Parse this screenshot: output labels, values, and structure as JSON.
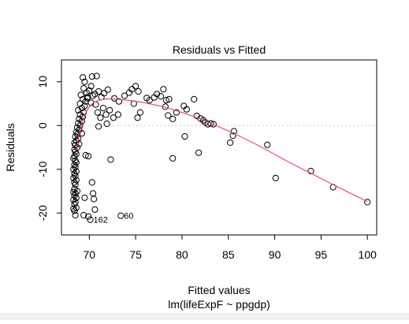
{
  "chart_data": {
    "type": "scatter",
    "title": "Residuals vs Fitted",
    "xlabel": "Fitted values",
    "subtitle": "lm(lifeExpF ~ ppgdp)",
    "ylabel": "Residuals",
    "xlim": [
      67,
      101
    ],
    "ylim": [
      -25,
      15
    ],
    "xticks": [
      70,
      75,
      80,
      85,
      90,
      95,
      100
    ],
    "yticks": [
      -20,
      -10,
      0,
      10
    ],
    "reference_line_y": 0,
    "smoother_color": "#df536b",
    "point_color": "#000000",
    "labeled_points": [
      {
        "label": "162",
        "x": 70.1,
        "y": -21.5
      },
      {
        "label": "60",
        "x": 73.4,
        "y": -20.6
      }
    ],
    "smoother": [
      [
        68.6,
        -5.5
      ],
      [
        68.8,
        -3.2
      ],
      [
        69.0,
        -1.0
      ],
      [
        69.3,
        1.0
      ],
      [
        69.6,
        2.8
      ],
      [
        70.0,
        4.3
      ],
      [
        70.5,
        5.3
      ],
      [
        71.2,
        5.9
      ],
      [
        72.0,
        6.1
      ],
      [
        73.0,
        6.0
      ],
      [
        74.5,
        5.7
      ],
      [
        76.0,
        5.2
      ],
      [
        78.0,
        4.3
      ],
      [
        80.0,
        3.0
      ],
      [
        82.0,
        1.5
      ],
      [
        84.0,
        -0.3
      ],
      [
        86.0,
        -2.2
      ],
      [
        88.0,
        -4.3
      ],
      [
        90.0,
        -6.6
      ],
      [
        92.0,
        -8.9
      ],
      [
        94.0,
        -11.0
      ],
      [
        96.0,
        -13.2
      ],
      [
        98.0,
        -15.3
      ],
      [
        100.0,
        -17.4
      ]
    ],
    "points": [
      [
        68.5,
        -20.5
      ],
      [
        68.4,
        -19.5
      ],
      [
        68.3,
        -19.0
      ],
      [
        68.6,
        -18.8
      ],
      [
        68.4,
        -18.0
      ],
      [
        68.5,
        -17.5
      ],
      [
        68.3,
        -17.0
      ],
      [
        68.6,
        -16.5
      ],
      [
        68.4,
        -16.0
      ],
      [
        68.5,
        -15.5
      ],
      [
        68.3,
        -15.2
      ],
      [
        68.7,
        -15.0
      ],
      [
        68.4,
        -14.5
      ],
      [
        68.5,
        -13.5
      ],
      [
        68.4,
        -13.0
      ],
      [
        68.6,
        -12.5
      ],
      [
        68.3,
        -12.0
      ],
      [
        68.5,
        -11.5
      ],
      [
        68.4,
        -11.0
      ],
      [
        68.6,
        -10.5
      ],
      [
        68.3,
        -10.0
      ],
      [
        68.5,
        -9.5
      ],
      [
        68.4,
        -9.0
      ],
      [
        68.6,
        -8.5
      ],
      [
        68.5,
        -8.0
      ],
      [
        68.3,
        -7.5
      ],
      [
        68.4,
        -7.0
      ],
      [
        68.6,
        -6.5
      ],
      [
        68.5,
        -6.0
      ],
      [
        68.4,
        -5.5
      ],
      [
        68.7,
        -5.0
      ],
      [
        68.5,
        -4.5
      ],
      [
        68.4,
        -4.0
      ],
      [
        68.6,
        -3.5
      ],
      [
        68.8,
        -3.0
      ],
      [
        68.5,
        -2.5
      ],
      [
        68.7,
        -2.0
      ],
      [
        68.6,
        -1.5
      ],
      [
        68.9,
        -1.0
      ],
      [
        68.7,
        -0.5
      ],
      [
        69.0,
        0.0
      ],
      [
        68.8,
        0.5
      ],
      [
        69.2,
        1.0
      ],
      [
        68.9,
        1.5
      ],
      [
        69.3,
        2.0
      ],
      [
        69.0,
        2.5
      ],
      [
        69.4,
        3.0
      ],
      [
        68.8,
        3.5
      ],
      [
        69.2,
        4.0
      ],
      [
        69.5,
        4.5
      ],
      [
        69.0,
        5.0
      ],
      [
        69.6,
        5.5
      ],
      [
        69.3,
        6.0
      ],
      [
        69.8,
        6.5
      ],
      [
        69.1,
        7.0
      ],
      [
        69.7,
        7.5
      ],
      [
        70.0,
        8.0
      ],
      [
        69.4,
        8.5
      ],
      [
        70.2,
        9.0
      ],
      [
        69.5,
        10.0
      ],
      [
        69.3,
        11.0
      ],
      [
        70.3,
        11.2
      ],
      [
        70.8,
        11.3
      ],
      [
        69.8,
        6.2
      ],
      [
        70.4,
        6.8
      ],
      [
        70.6,
        7.2
      ],
      [
        71.0,
        7.8
      ],
      [
        71.3,
        6.5
      ],
      [
        71.6,
        7.4
      ],
      [
        72.0,
        8.2
      ],
      [
        70.2,
        5.2
      ],
      [
        70.7,
        4.8
      ],
      [
        71.5,
        4.0
      ],
      [
        72.2,
        3.5
      ],
      [
        70.9,
        3.0
      ],
      [
        71.8,
        2.5
      ],
      [
        71.2,
        1.8
      ],
      [
        71.9,
        0.4
      ],
      [
        71.0,
        -0.2
      ],
      [
        69.2,
        -1.8
      ],
      [
        68.9,
        -4.2
      ],
      [
        69.6,
        -6.8
      ],
      [
        69.9,
        -7.0
      ],
      [
        70.3,
        -13.0
      ],
      [
        70.4,
        -15.5
      ],
      [
        69.5,
        -16.5
      ],
      [
        70.5,
        -16.8
      ],
      [
        70.6,
        -19.2
      ],
      [
        69.4,
        -20.5
      ],
      [
        69.9,
        -20.8
      ],
      [
        70.1,
        -21.5
      ],
      [
        73.4,
        -20.6
      ],
      [
        72.3,
        -7.8
      ],
      [
        72.6,
        1.8
      ],
      [
        72.7,
        6.2
      ],
      [
        73.1,
        2.5
      ],
      [
        73.2,
        5.5
      ],
      [
        73.8,
        6.8
      ],
      [
        74.3,
        7.5
      ],
      [
        74.6,
        8.3
      ],
      [
        75.0,
        9.0
      ],
      [
        75.3,
        7.8
      ],
      [
        74.8,
        5.0
      ],
      [
        75.5,
        3.0
      ],
      [
        75.2,
        1.8
      ],
      [
        76.2,
        6.3
      ],
      [
        76.5,
        5.8
      ],
      [
        77.0,
        6.4
      ],
      [
        77.3,
        7.2
      ],
      [
        77.7,
        6.7
      ],
      [
        78.0,
        8.3
      ],
      [
        78.3,
        5.8
      ],
      [
        78.6,
        6.0
      ],
      [
        78.2,
        4.3
      ],
      [
        78.5,
        2.3
      ],
      [
        79.0,
        1.5
      ],
      [
        79.4,
        3.0
      ],
      [
        80.2,
        4.5
      ],
      [
        80.5,
        3.7
      ],
      [
        80.3,
        -2.5
      ],
      [
        79.0,
        -7.5
      ],
      [
        81.3,
        6.0
      ],
      [
        81.6,
        2.2
      ],
      [
        82.0,
        1.6
      ],
      [
        82.3,
        1.2
      ],
      [
        82.5,
        0.7
      ],
      [
        81.8,
        -6.2
      ],
      [
        82.8,
        0.3
      ],
      [
        83.1,
        0.5
      ],
      [
        83.4,
        0.3
      ],
      [
        85.2,
        -3.9
      ],
      [
        85.6,
        -1.3
      ],
      [
        85.5,
        -2.3
      ],
      [
        89.2,
        -4.4
      ],
      [
        90.1,
        -12.0
      ],
      [
        93.9,
        -10.4
      ],
      [
        96.3,
        -14.1
      ],
      [
        100.0,
        -17.5
      ]
    ]
  }
}
